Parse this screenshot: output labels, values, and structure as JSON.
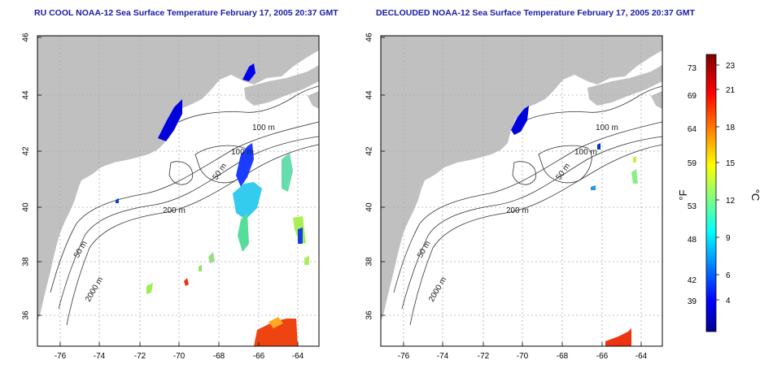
{
  "panels": [
    {
      "title": "RU COOL NOAA-12 Sea Surface Temperature February 17, 2005 20:37 GMT",
      "contour_labels": [
        "100 m",
        "100 m",
        "50 m",
        "200 m",
        "50 m",
        "2000 m"
      ]
    },
    {
      "title": "DECLOUDED NOAA-12 Sea Surface Temperature February 17, 2005 20:37 GMT",
      "contour_labels": [
        "100 m",
        "100 m",
        "50 m",
        "200 m",
        "50 m",
        "2000 m"
      ]
    }
  ],
  "axes": {
    "lat_ticks": [
      "36",
      "38",
      "40",
      "42",
      "44",
      "46"
    ],
    "lon_ticks": [
      "-76",
      "-74",
      "-72",
      "-70",
      "-68",
      "-66",
      "-64"
    ]
  },
  "colorbar": {
    "fahrenheit_label": "°F",
    "celsius_label": "°C",
    "fahrenheit_ticks": [
      "73",
      "69",
      "64",
      "59",
      "53",
      "48",
      "42",
      "39"
    ],
    "celsius_ticks": [
      "23",
      "21",
      "18",
      "15",
      "12",
      "9",
      "6",
      "4"
    ]
  },
  "colors": {
    "land": "#c0c0c0",
    "title": "#1a1aa6",
    "grid": "#aaaaaa"
  }
}
